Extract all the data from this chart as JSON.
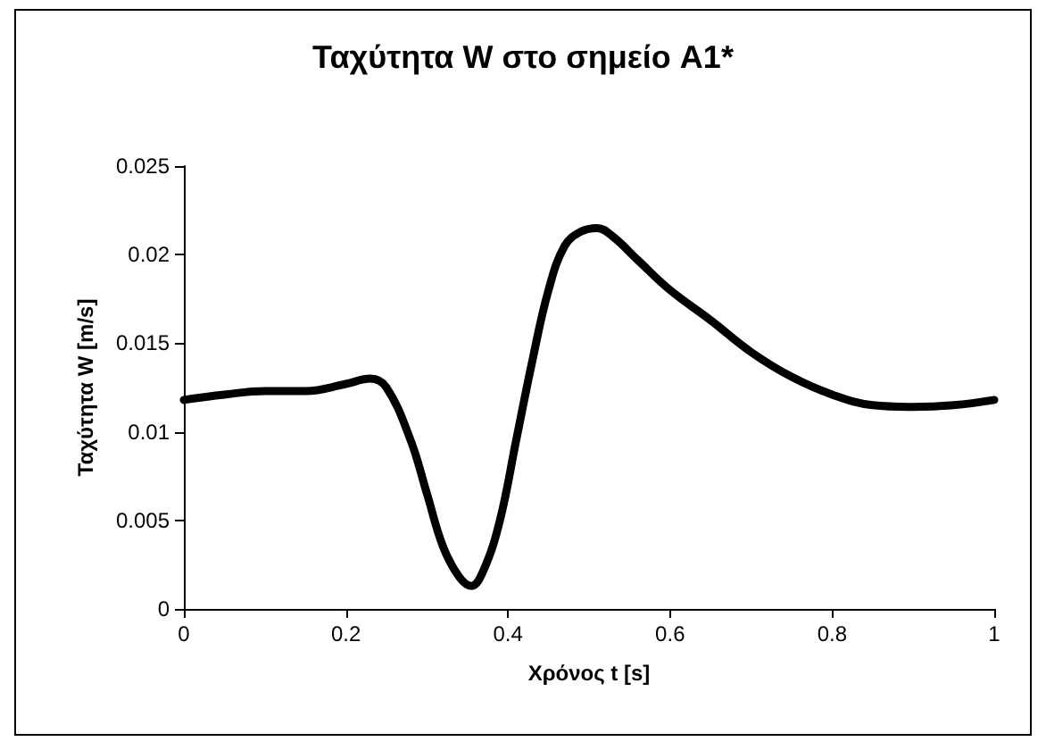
{
  "chart_data": {
    "type": "line",
    "title": "Ταχύτητα W στο σημείο A1*",
    "xlabel": "Χρόνος t [s]",
    "ylabel": "Ταχύτητα W [m/s]",
    "series": [
      {
        "color": "#000000",
        "x": [
          0,
          0.05,
          0.1,
          0.15,
          0.2,
          0.23,
          0.25,
          0.28,
          0.3,
          0.32,
          0.34,
          0.355,
          0.37,
          0.39,
          0.41,
          0.43,
          0.45,
          0.47,
          0.49,
          0.51,
          0.53,
          0.56,
          0.6,
          0.65,
          0.7,
          0.75,
          0.8,
          0.85,
          0.9,
          0.95,
          1
        ],
        "values": [
          0.0118,
          0.0121,
          0.0123,
          0.0123,
          0.0127,
          0.013,
          0.0125,
          0.0095,
          0.0065,
          0.0035,
          0.0018,
          0.0013,
          0.0022,
          0.005,
          0.0095,
          0.014,
          0.018,
          0.0205,
          0.0213,
          0.0215,
          0.021,
          0.0197,
          0.018,
          0.0163,
          0.0145,
          0.0131,
          0.0121,
          0.0115,
          0.0114,
          0.0115,
          0.0118
        ]
      }
    ],
    "xlim": [
      0,
      1
    ],
    "xticks": [
      0,
      0.2,
      0.4,
      0.6,
      0.8,
      1
    ],
    "ylim": [
      0,
      0.025
    ],
    "yticks": [
      0,
      0.005,
      0.01,
      0.015,
      0.02,
      0.025
    ],
    "grid": false,
    "marker": "none",
    "line_style": "solid"
  }
}
